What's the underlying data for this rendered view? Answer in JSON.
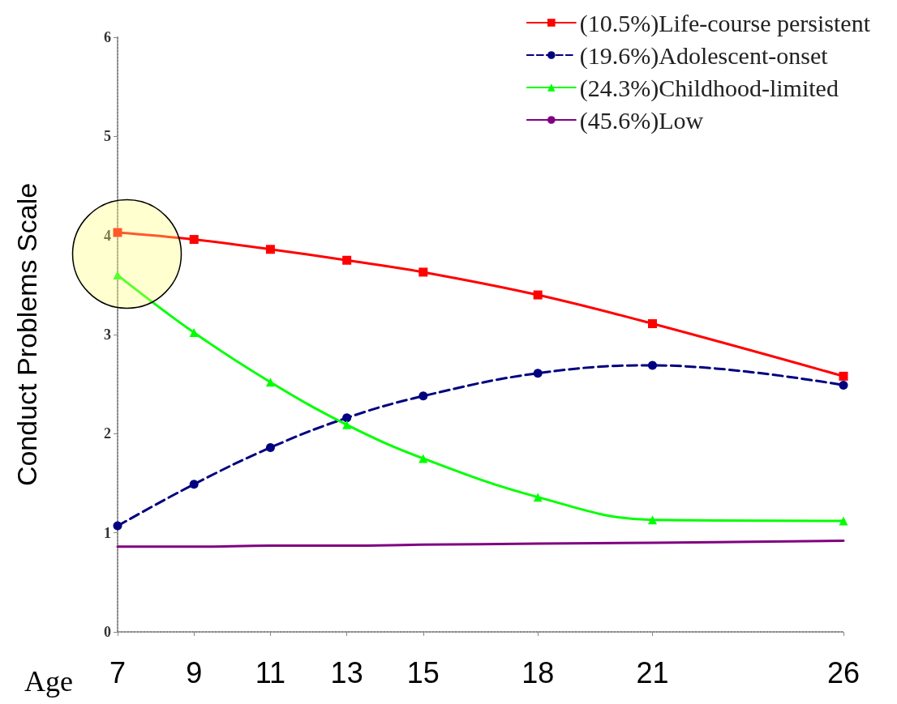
{
  "chart_data": {
    "type": "line",
    "xlabel": "Age",
    "ylabel": "Conduct Problems Scale",
    "x": [
      7,
      9,
      11,
      13,
      15,
      18,
      21,
      26
    ],
    "xlim": [
      7,
      26
    ],
    "xticks": [
      7,
      9,
      11,
      13,
      15,
      18,
      21,
      26
    ],
    "ylim": [
      0,
      6
    ],
    "yticks": [
      0,
      1,
      2,
      3,
      4,
      5,
      6
    ],
    "series": [
      {
        "name": "(10.5%)Life-course persistent",
        "color": "#ff0000",
        "marker": "square",
        "line_style": "solid",
        "values": [
          4.03,
          3.96,
          3.86,
          3.75,
          3.63,
          3.4,
          3.11,
          2.58
        ]
      },
      {
        "name": "(19.6%)Adolescent-onset",
        "color": "#000080",
        "marker": "circle",
        "line_style": "dashed",
        "values": [
          1.07,
          1.49,
          1.86,
          2.16,
          2.38,
          2.61,
          2.69,
          2.49
        ]
      },
      {
        "name": "(24.3%)Childhood-limited",
        "color": "#00ff00",
        "marker": "triangle",
        "line_style": "solid",
        "values": [
          3.6,
          3.02,
          2.52,
          2.09,
          1.75,
          1.36,
          1.13,
          1.12
        ]
      },
      {
        "name": "(45.6%)Low",
        "color": "#800080",
        "marker": "none",
        "line_style": "solid",
        "values": [
          0.86,
          0.86,
          0.87,
          0.87,
          0.88,
          0.89,
          0.9,
          0.92
        ]
      }
    ],
    "grid": false,
    "legend": "top right"
  }
}
